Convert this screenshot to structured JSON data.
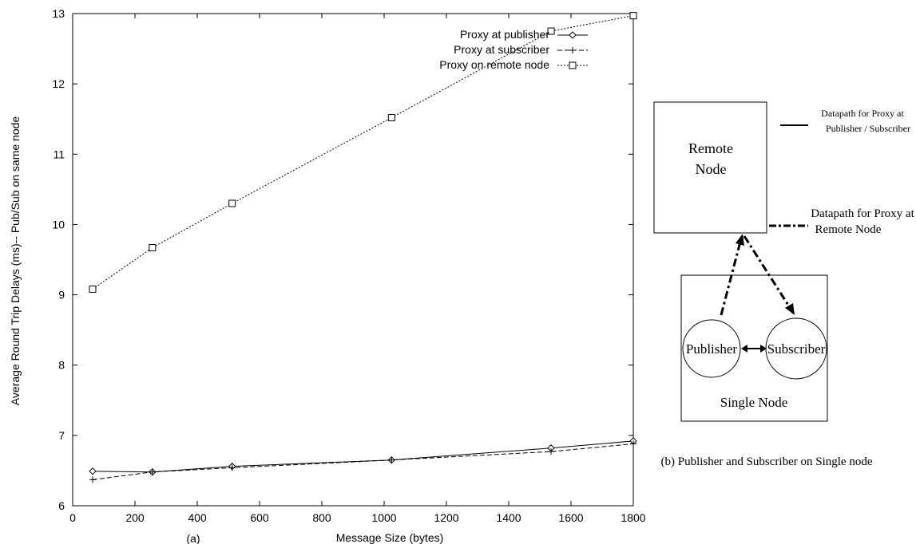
{
  "chart_data": {
    "type": "line",
    "xlabel": "Message Size (bytes)",
    "ylabel": "Average Round Trip Delays (ms)-- Pub/Sub on same node",
    "panel_label": "(a)",
    "xlim": [
      0,
      1800
    ],
    "ylim": [
      6,
      13
    ],
    "x_ticks": [
      0,
      200,
      400,
      600,
      800,
      1000,
      1200,
      1400,
      1600,
      1800
    ],
    "y_ticks": [
      6,
      7,
      8,
      9,
      10,
      11,
      12,
      13
    ],
    "grid": false,
    "legend_position": "top-right",
    "x": [
      64,
      256,
      512,
      1024,
      1536,
      1800
    ],
    "series": [
      {
        "name": "Proxy at publisher",
        "marker": "diamond",
        "line": "solid",
        "values": [
          6.49,
          6.48,
          6.56,
          6.65,
          6.82,
          6.92
        ]
      },
      {
        "name": "Proxy at subscriber",
        "marker": "plus",
        "line": "dashed",
        "values": [
          6.37,
          6.48,
          6.54,
          6.65,
          6.77,
          6.88
        ]
      },
      {
        "name": "Proxy on remote node",
        "marker": "square",
        "line": "dotted",
        "values": [
          9.08,
          9.67,
          10.3,
          11.52,
          12.75,
          12.97
        ]
      }
    ]
  },
  "diagram": {
    "remote_node": "Remote Node",
    "remote_node_line1": "Remote",
    "remote_node_line2": "Node",
    "publisher": "Publisher",
    "subscriber": "Subscriber",
    "single_node": "Single Node",
    "legend_solid_line1": "Datapath for Proxy at",
    "legend_solid_line2": "Publisher / Subscriber",
    "legend_dash_line1": "Datapath for Proxy at",
    "legend_dash_line2": "Remote Node",
    "caption": "(b)  Publisher and Subscriber on Single node"
  }
}
